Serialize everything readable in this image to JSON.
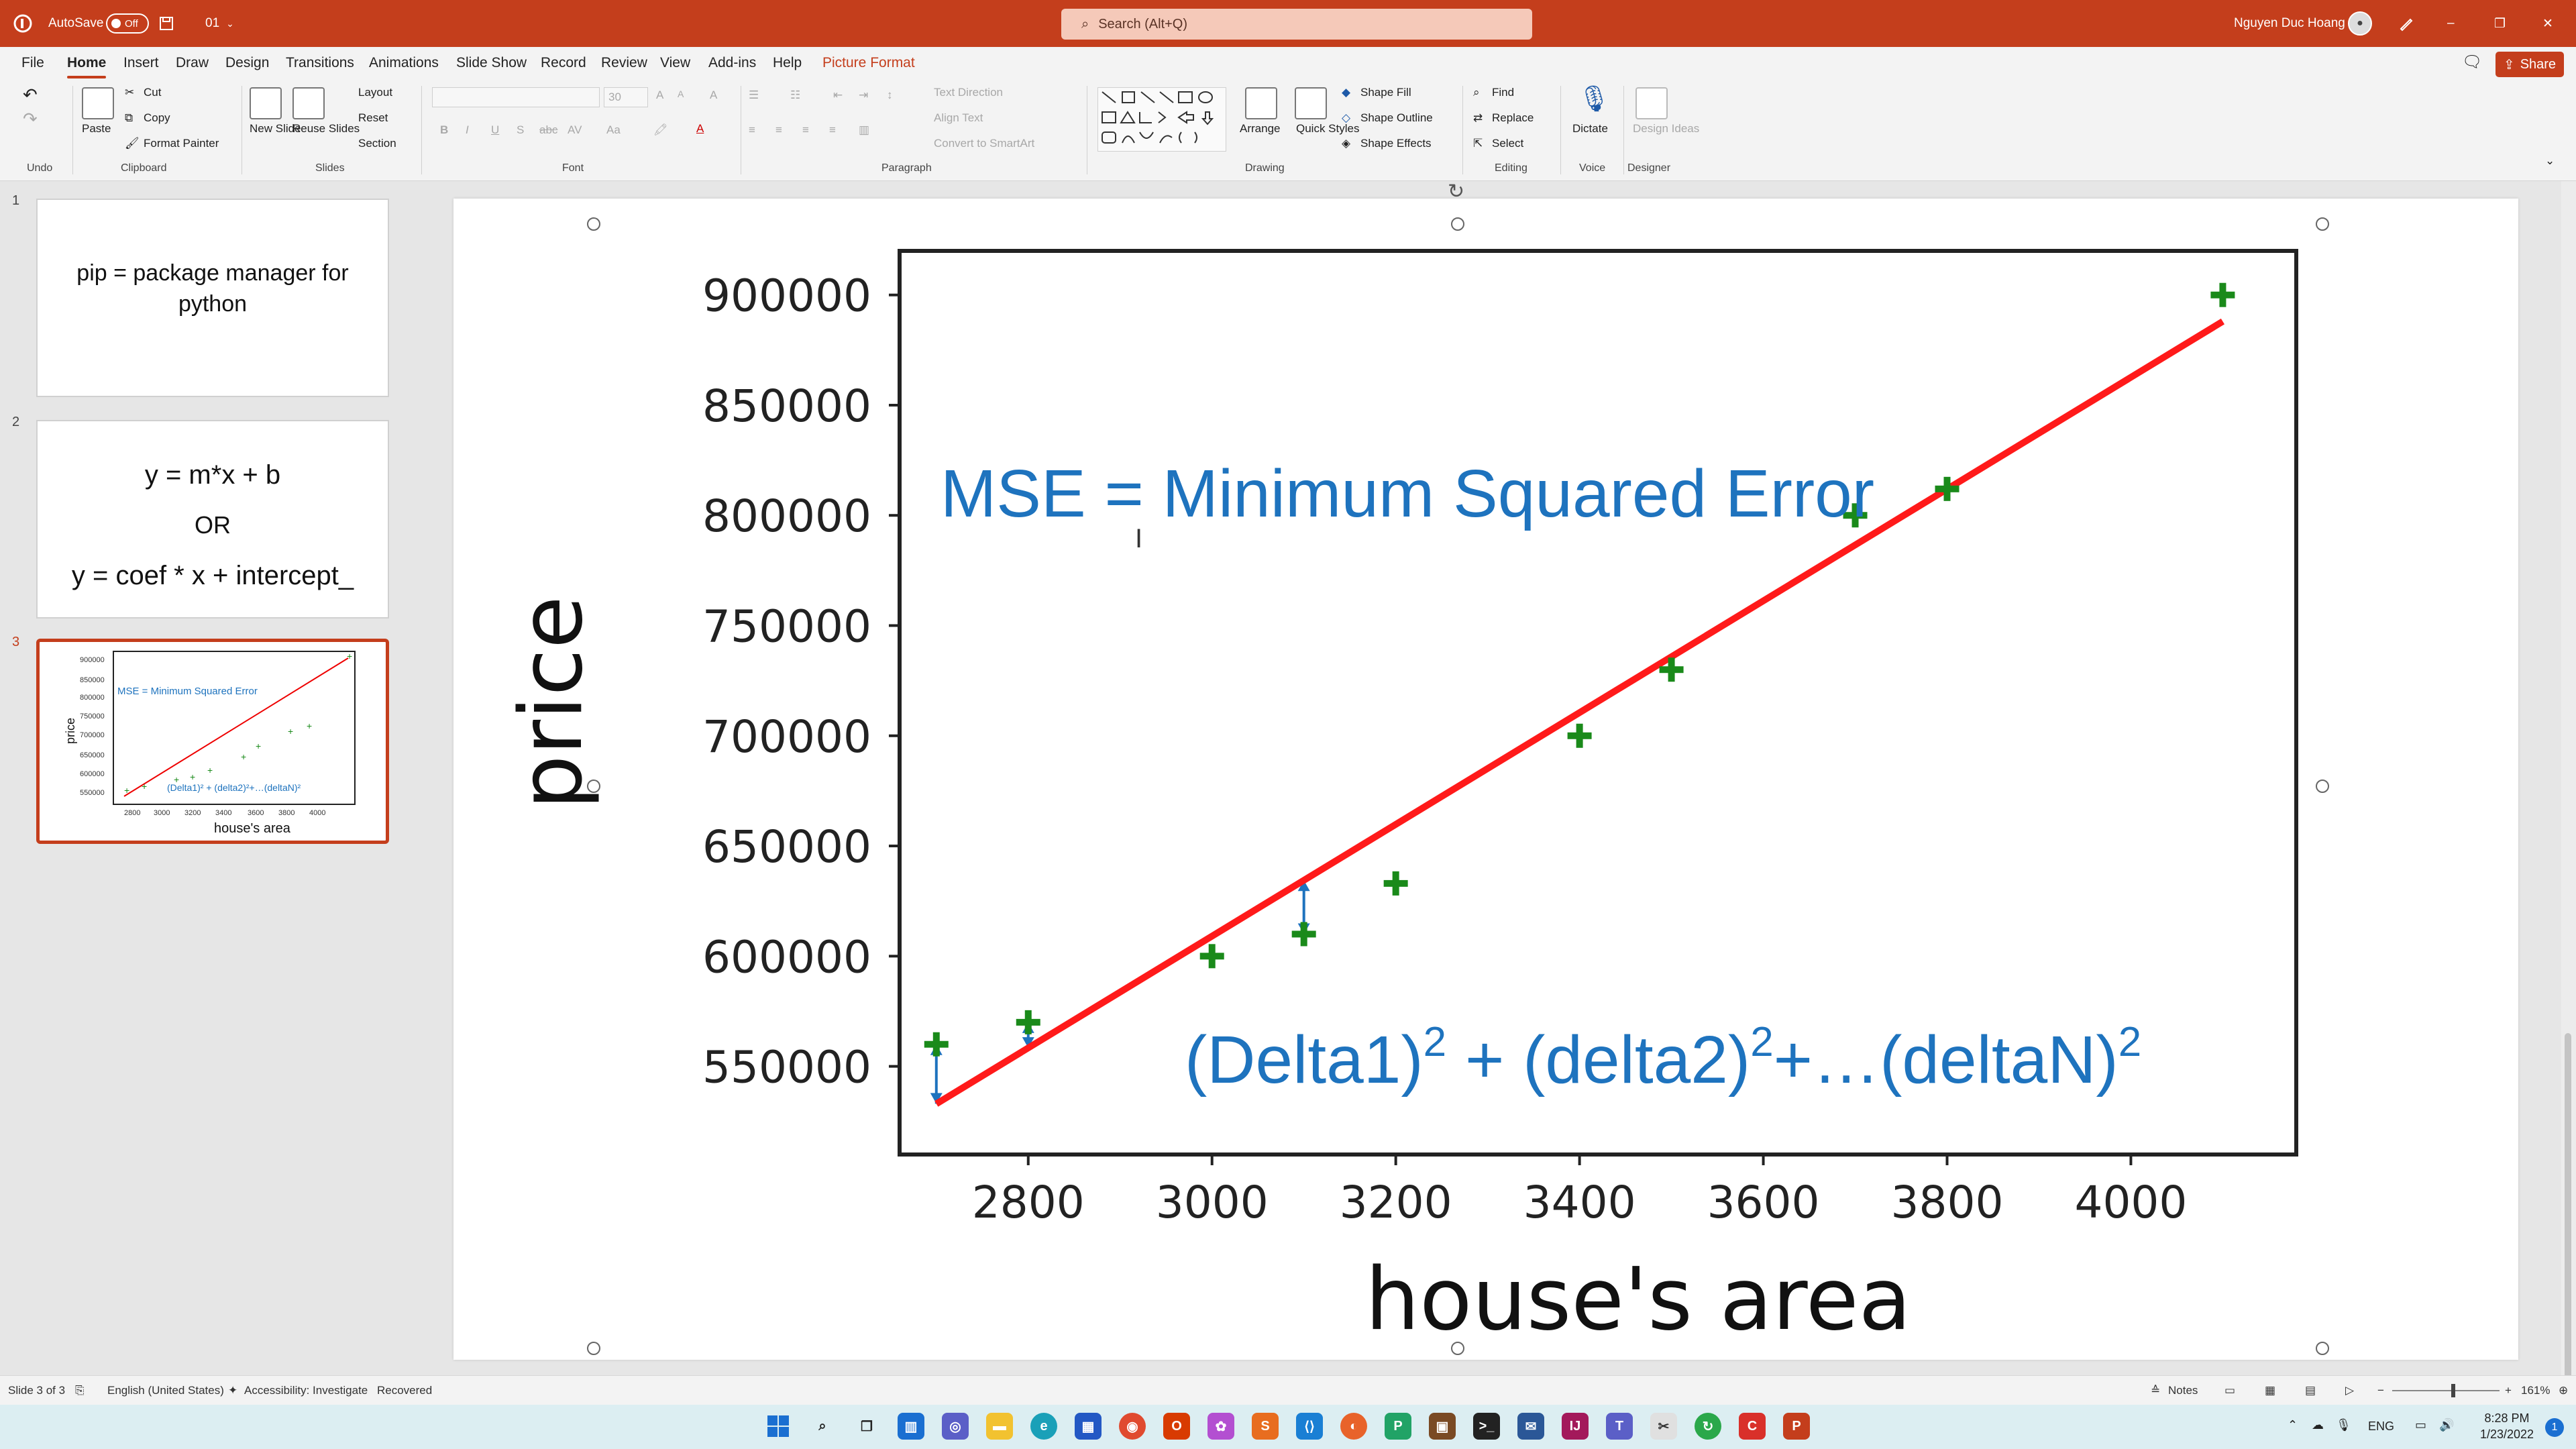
{
  "titlebar": {
    "autosave_label": "AutoSave",
    "autosave_state": "Off",
    "filename": "01",
    "search_placeholder": "Search (Alt+Q)",
    "user_name": "Nguyen Duc Hoang"
  },
  "menu": {
    "tabs": [
      "File",
      "Home",
      "Insert",
      "Draw",
      "Design",
      "Transitions",
      "Animations",
      "Slide Show",
      "Record",
      "Review",
      "View",
      "Add-ins",
      "Help",
      "Picture Format"
    ],
    "share_label": "Share"
  },
  "ribbon": {
    "undo_label": "Undo",
    "clipboard": {
      "paste": "Paste",
      "cut": "Cut",
      "copy": "Copy",
      "format_painter": "Format Painter",
      "group": "Clipboard"
    },
    "slides": {
      "new_slide": "New Slide",
      "reuse_slides": "Reuse Slides",
      "layout": "Layout",
      "reset": "Reset",
      "section": "Section",
      "group": "Slides"
    },
    "font": {
      "size": "30",
      "group": "Font",
      "bold": "B",
      "italic": "I",
      "underline": "U",
      "strike": "S",
      "abc": "abc",
      "av": "AV",
      "aa": "Aa",
      "grow": "A",
      "shrink": "A",
      "clear": "A",
      "color": "A"
    },
    "paragraph": {
      "text_direction": "Text Direction",
      "align_text": "Align Text",
      "convert_smartart": "Convert to SmartArt",
      "group": "Paragraph"
    },
    "drawing": {
      "arrange": "Arrange",
      "quick_styles": "Quick Styles",
      "shape_fill": "Shape Fill",
      "shape_outline": "Shape Outline",
      "shape_effects": "Shape Effects",
      "group": "Drawing"
    },
    "editing": {
      "find": "Find",
      "replace": "Replace",
      "select": "Select",
      "group": "Editing"
    },
    "voice": {
      "dictate": "Dictate",
      "group": "Voice"
    },
    "designer": {
      "design_ideas": "Design Ideas",
      "group": "Designer"
    }
  },
  "thumbnails": [
    {
      "num": "1",
      "lines": [
        "pip = package manager for",
        "python"
      ]
    },
    {
      "num": "2",
      "lines": [
        "y = m*x + b",
        "OR",
        "y = coef * x + intercept_"
      ]
    },
    {
      "num": "3",
      "mse": "MSE = Minimum Squared Error",
      "delta": "(Delta1)² + (delta2)²+…(deltaN)²",
      "ylabel": "price",
      "xlabel": "house's area"
    }
  ],
  "slide": {
    "mse_text": "MSE = Minimum Squared Error",
    "delta_text_parts": [
      "(Delta1)",
      "2",
      " + (delta2)",
      "2",
      "+…(deltaN)",
      "2"
    ]
  },
  "chart_data": {
    "type": "scatter",
    "xlabel": "house's area",
    "ylabel": "price",
    "xlim": [
      2660,
      4180
    ],
    "ylim": [
      510000,
      920000
    ],
    "xticks": [
      2800,
      3000,
      3200,
      3400,
      3600,
      3800,
      4000
    ],
    "yticks": [
      550000,
      600000,
      650000,
      700000,
      750000,
      800000,
      850000,
      900000
    ],
    "points": [
      {
        "x": 2700,
        "y": 560000
      },
      {
        "x": 2800,
        "y": 570000
      },
      {
        "x": 3000,
        "y": 600000
      },
      {
        "x": 3100,
        "y": 610000
      },
      {
        "x": 3200,
        "y": 633000
      },
      {
        "x": 3400,
        "y": 700000
      },
      {
        "x": 3500,
        "y": 730000
      },
      {
        "x": 3700,
        "y": 800000
      },
      {
        "x": 3800,
        "y": 812000
      },
      {
        "x": 4100,
        "y": 900000
      }
    ],
    "fit_line": {
      "x": [
        2700,
        4100
      ],
      "y": [
        533000,
        888000
      ]
    },
    "marker_color": "#1a8a1a",
    "line_color": "#ff1a1a",
    "annotation_color": "#1e73be"
  },
  "statusbar": {
    "slide_info": "Slide 3 of 3",
    "language": "English (United States)",
    "accessibility": "Accessibility: Investigate",
    "recovered": "Recovered",
    "notes": "Notes",
    "zoom": "161%"
  },
  "taskbar": {
    "lang": "ENG",
    "time": "8:28 PM",
    "date": "1/23/2022",
    "notif": "1"
  }
}
